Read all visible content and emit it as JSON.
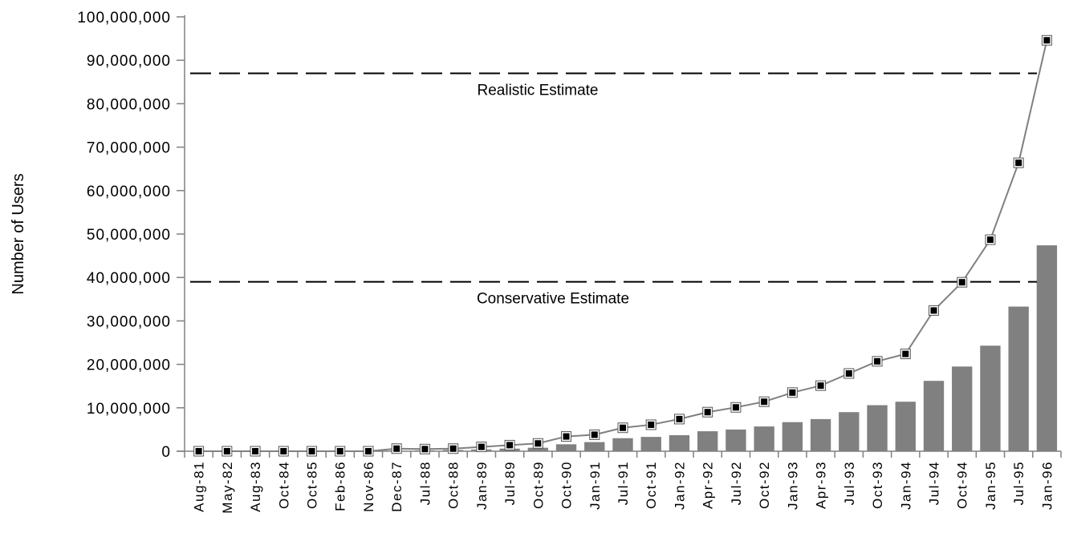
{
  "chart_data": {
    "type": "bar+line",
    "xlabel": "",
    "ylabel": "Number of Users",
    "ylim": [
      0,
      100000000
    ],
    "yticks": [
      0,
      10000000,
      20000000,
      30000000,
      40000000,
      50000000,
      60000000,
      70000000,
      80000000,
      90000000,
      100000000
    ],
    "ytick_labels": [
      "0",
      "10,000,000",
      "20,000,000",
      "30,000,000",
      "40,000,000",
      "50,000,000",
      "60,000,000",
      "70,000,000",
      "80,000,000",
      "90,000,000",
      "100,000,000"
    ],
    "categories": [
      "Aug-81",
      "May-82",
      "Aug-83",
      "Oct-84",
      "Oct-85",
      "Feb-86",
      "Nov-86",
      "Dec-87",
      "Jul-88",
      "Oct-88",
      "Jan-89",
      "Jul-89",
      "Oct-89",
      "Oct-90",
      "Jan-91",
      "Jul-91",
      "Oct-91",
      "Jan-92",
      "Apr-92",
      "Jul-92",
      "Oct-92",
      "Jan-93",
      "Apr-93",
      "Jul-93",
      "Oct-93",
      "Jan-94",
      "Jul-94",
      "Oct-94",
      "Jan-95",
      "Jul-95",
      "Jan-96"
    ],
    "series": [
      {
        "type": "bar",
        "color": "#808080",
        "values": [
          0,
          0,
          0,
          0,
          0,
          0,
          0,
          100000,
          200000,
          300000,
          400000,
          600000,
          800000,
          1600000,
          2100000,
          3000000,
          3300000,
          3700000,
          4600000,
          5000000,
          5700000,
          6700000,
          7400000,
          9000000,
          10600000,
          11400000,
          16200000,
          19500000,
          24300000,
          33300000,
          47400000
        ]
      },
      {
        "type": "line",
        "color": "#808080",
        "marker_color": "#000000",
        "values": [
          0,
          0,
          0,
          0,
          0,
          0,
          0,
          600000,
          500000,
          600000,
          1000000,
          1400000,
          1800000,
          3400000,
          3800000,
          5400000,
          6100000,
          7400000,
          9000000,
          10100000,
          11400000,
          13500000,
          15100000,
          17900000,
          20700000,
          22400000,
          32400000,
          38900000,
          48700000,
          66400000,
          94600000
        ]
      }
    ],
    "reference_lines": [
      {
        "value": 87000000,
        "label": "Realistic Estimate",
        "style": "dashed"
      },
      {
        "value": 39000000,
        "label": "Conservative Estimate",
        "style": "dashed"
      }
    ],
    "grid": false,
    "legend": "none"
  }
}
